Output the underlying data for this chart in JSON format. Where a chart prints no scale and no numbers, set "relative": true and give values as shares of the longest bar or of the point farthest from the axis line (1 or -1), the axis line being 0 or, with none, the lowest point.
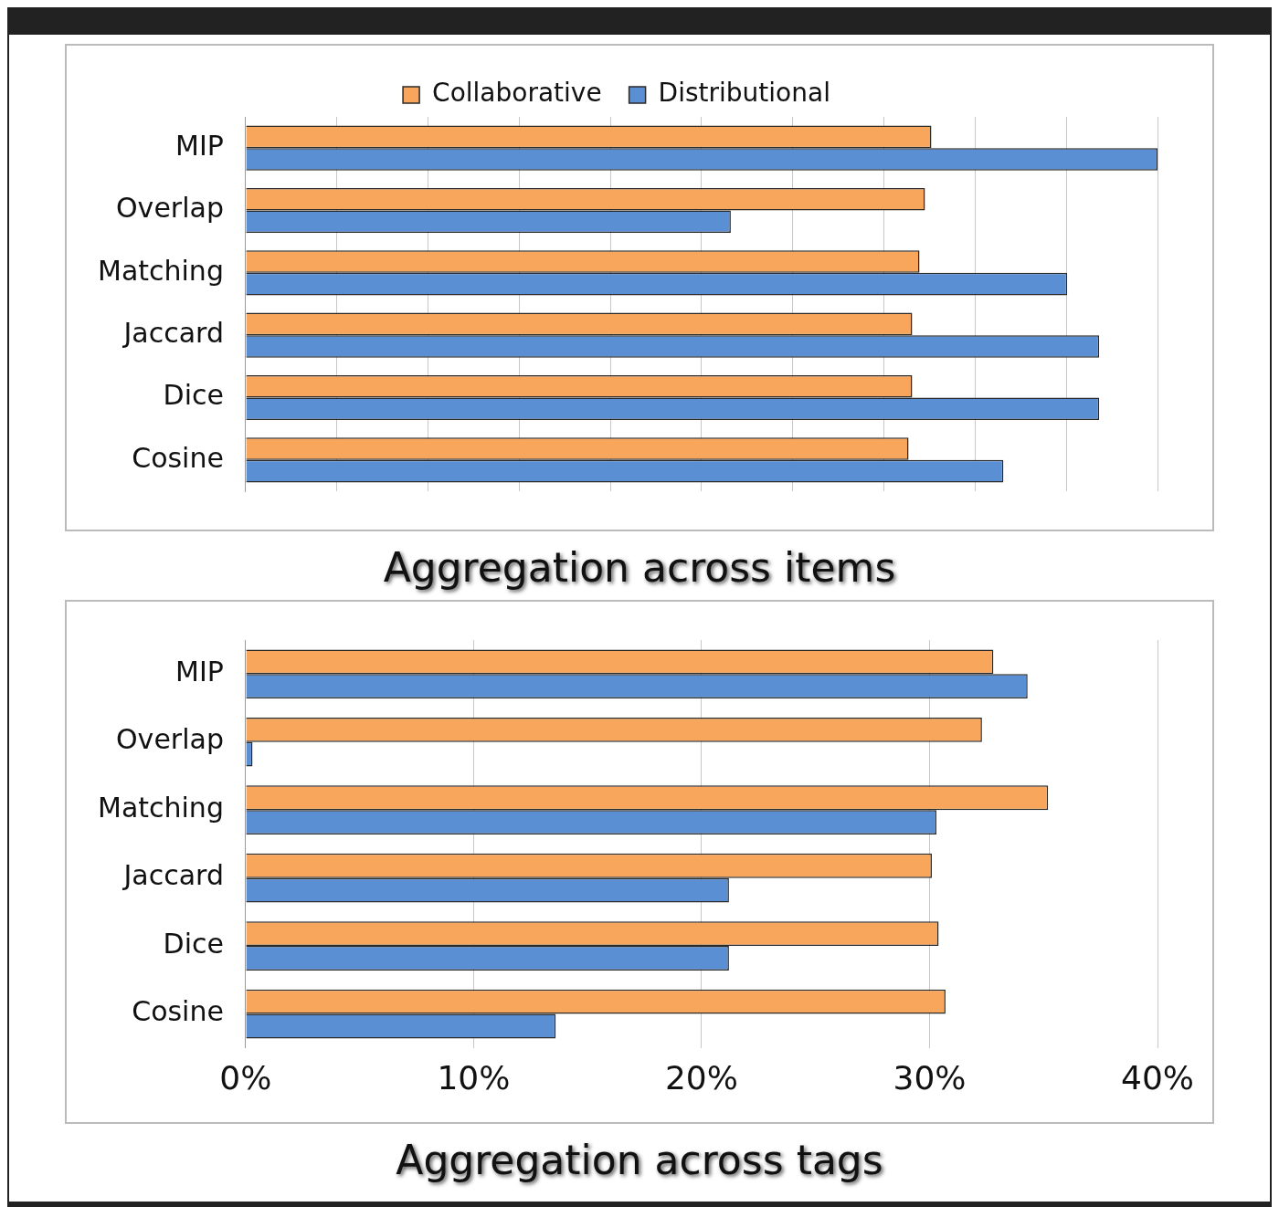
{
  "chart_data": [
    {
      "type": "bar",
      "orientation": "horizontal",
      "relative": true,
      "title": "Aggregation across items",
      "categories": [
        "MIP",
        "Overlap",
        "Matching",
        "Jaccard",
        "Dice",
        "Cosine"
      ],
      "series": [
        {
          "name": "Collaborative",
          "color": "#f7a65c",
          "values": [
            0.752,
            0.745,
            0.739,
            0.731,
            0.731,
            0.727
          ]
        },
        {
          "name": "Distributional",
          "color": "#5b8fd3",
          "values": [
            1.0,
            0.532,
            0.901,
            0.936,
            0.936,
            0.831
          ]
        }
      ],
      "legend": "top",
      "grid": "x"
    },
    {
      "type": "bar",
      "orientation": "horizontal",
      "title": "Aggregation across tags",
      "categories": [
        "MIP",
        "Overlap",
        "Matching",
        "Jaccard",
        "Dice",
        "Cosine"
      ],
      "series": [
        {
          "color": "#f7a65c",
          "values": [
            32.8,
            32.3,
            35.2,
            30.1,
            30.4,
            30.7
          ]
        },
        {
          "color": "#5b8fd3",
          "values": [
            34.3,
            0.3,
            30.3,
            21.2,
            21.2,
            13.6
          ]
        }
      ],
      "xlim": [
        0,
        40
      ],
      "xticks": [
        {
          "value": 0,
          "label": "0%"
        },
        {
          "value": 10,
          "label": "10%"
        },
        {
          "value": 20,
          "label": "20%"
        },
        {
          "value": 30,
          "label": "30%"
        },
        {
          "value": 40,
          "label": "40%"
        }
      ],
      "grid": "x"
    }
  ]
}
